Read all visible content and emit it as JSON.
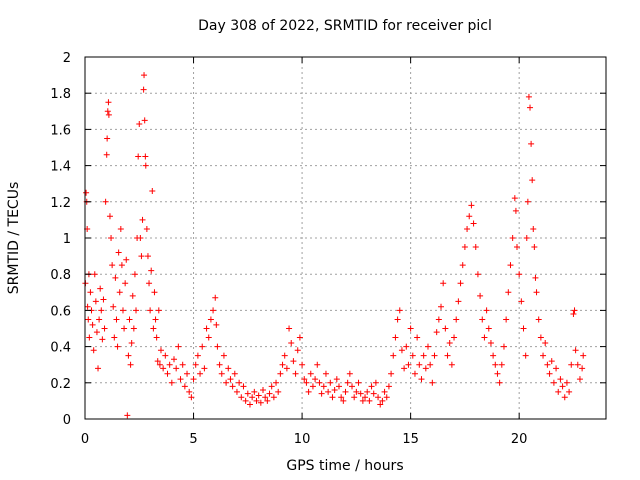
{
  "chart_data": {
    "type": "scatter",
    "title": "Day 308 of 2022, SRMTID for receiver picl",
    "xlabel": "GPS time / hours",
    "ylabel": "SRMTID / TECUs",
    "xlim": [
      0,
      24
    ],
    "ylim": [
      0,
      2
    ],
    "xticks": [
      0,
      5,
      10,
      15,
      20
    ],
    "xtick_labels": [
      "0",
      "5",
      "10",
      "15",
      "20"
    ],
    "yticks": [
      0,
      0.2,
      0.4,
      0.6,
      0.8,
      1,
      1.2,
      1.4,
      1.6,
      1.8,
      2
    ],
    "ytick_labels": [
      "0",
      "0.2",
      "0.4",
      "0.6",
      "0.8",
      "1",
      "1.2",
      "1.4",
      "1.6",
      "1.8",
      "2"
    ],
    "grid": true,
    "marker": "+",
    "color": "#ff0000",
    "series": [
      {
        "name": "SRMTID",
        "points": [
          [
            0.02,
            0.75
          ],
          [
            0.05,
            1.25
          ],
          [
            0.08,
            1.2
          ],
          [
            0.1,
            1.05
          ],
          [
            0.12,
            0.62
          ],
          [
            0.15,
            0.55
          ],
          [
            0.18,
            0.8
          ],
          [
            0.2,
            0.45
          ],
          [
            0.25,
            0.7
          ],
          [
            0.3,
            0.6
          ],
          [
            0.35,
            0.52
          ],
          [
            0.4,
            0.38
          ],
          [
            0.45,
            0.8
          ],
          [
            0.5,
            0.65
          ],
          [
            0.55,
            0.48
          ],
          [
            0.6,
            0.28
          ],
          [
            0.65,
            0.55
          ],
          [
            0.7,
            0.72
          ],
          [
            0.75,
            0.6
          ],
          [
            0.8,
            0.44
          ],
          [
            0.85,
            0.66
          ],
          [
            0.9,
            0.5
          ],
          [
            0.95,
            1.2
          ],
          [
            1.0,
            1.46
          ],
          [
            1.02,
            1.55
          ],
          [
            1.05,
            1.7
          ],
          [
            1.08,
            1.75
          ],
          [
            1.1,
            1.68
          ],
          [
            1.15,
            1.12
          ],
          [
            1.2,
            1.0
          ],
          [
            1.25,
            0.85
          ],
          [
            1.3,
            0.62
          ],
          [
            1.35,
            0.45
          ],
          [
            1.4,
            0.78
          ],
          [
            1.45,
            0.55
          ],
          [
            1.5,
            0.4
          ],
          [
            1.55,
            0.92
          ],
          [
            1.6,
            0.7
          ],
          [
            1.65,
            1.05
          ],
          [
            1.7,
            0.85
          ],
          [
            1.75,
            0.6
          ],
          [
            1.8,
            0.5
          ],
          [
            1.85,
            0.75
          ],
          [
            1.9,
            0.88
          ],
          [
            1.95,
            0.02
          ],
          [
            2.0,
            0.35
          ],
          [
            2.05,
            0.55
          ],
          [
            2.1,
            0.3
          ],
          [
            2.15,
            0.42
          ],
          [
            2.2,
            0.68
          ],
          [
            2.25,
            0.5
          ],
          [
            2.3,
            0.8
          ],
          [
            2.35,
            0.6
          ],
          [
            2.4,
            1.0
          ],
          [
            2.45,
            1.45
          ],
          [
            2.5,
            1.63
          ],
          [
            2.55,
            1.0
          ],
          [
            2.6,
            0.9
          ],
          [
            2.65,
            1.1
          ],
          [
            2.7,
            1.82
          ],
          [
            2.72,
            1.9
          ],
          [
            2.75,
            1.65
          ],
          [
            2.78,
            1.45
          ],
          [
            2.8,
            1.4
          ],
          [
            2.85,
            1.05
          ],
          [
            2.9,
            0.9
          ],
          [
            2.95,
            0.75
          ],
          [
            3.0,
            0.6
          ],
          [
            3.05,
            0.82
          ],
          [
            3.1,
            1.26
          ],
          [
            3.15,
            0.5
          ],
          [
            3.2,
            0.7
          ],
          [
            3.25,
            0.55
          ],
          [
            3.3,
            0.45
          ],
          [
            3.35,
            0.32
          ],
          [
            3.4,
            0.6
          ],
          [
            3.45,
            0.3
          ],
          [
            3.5,
            0.38
          ],
          [
            3.6,
            0.28
          ],
          [
            3.7,
            0.35
          ],
          [
            3.8,
            0.25
          ],
          [
            3.9,
            0.3
          ],
          [
            4.0,
            0.2
          ],
          [
            4.1,
            0.33
          ],
          [
            4.2,
            0.28
          ],
          [
            4.3,
            0.4
          ],
          [
            4.4,
            0.22
          ],
          [
            4.5,
            0.3
          ],
          [
            4.6,
            0.18
          ],
          [
            4.7,
            0.25
          ],
          [
            4.8,
            0.15
          ],
          [
            4.9,
            0.12
          ],
          [
            5.0,
            0.22
          ],
          [
            5.1,
            0.3
          ],
          [
            5.2,
            0.35
          ],
          [
            5.3,
            0.25
          ],
          [
            5.4,
            0.4
          ],
          [
            5.5,
            0.28
          ],
          [
            5.6,
            0.5
          ],
          [
            5.7,
            0.45
          ],
          [
            5.8,
            0.55
          ],
          [
            5.9,
            0.6
          ],
          [
            6.0,
            0.67
          ],
          [
            6.05,
            0.52
          ],
          [
            6.1,
            0.4
          ],
          [
            6.2,
            0.3
          ],
          [
            6.3,
            0.25
          ],
          [
            6.4,
            0.35
          ],
          [
            6.5,
            0.2
          ],
          [
            6.6,
            0.28
          ],
          [
            6.7,
            0.22
          ],
          [
            6.8,
            0.18
          ],
          [
            6.9,
            0.25
          ],
          [
            7.0,
            0.15
          ],
          [
            7.1,
            0.2
          ],
          [
            7.2,
            0.12
          ],
          [
            7.3,
            0.18
          ],
          [
            7.4,
            0.1
          ],
          [
            7.5,
            0.14
          ],
          [
            7.6,
            0.08
          ],
          [
            7.7,
            0.12
          ],
          [
            7.8,
            0.15
          ],
          [
            7.9,
            0.1
          ],
          [
            8.0,
            0.13
          ],
          [
            8.1,
            0.09
          ],
          [
            8.2,
            0.16
          ],
          [
            8.3,
            0.12
          ],
          [
            8.4,
            0.1
          ],
          [
            8.5,
            0.14
          ],
          [
            8.6,
            0.18
          ],
          [
            8.7,
            0.12
          ],
          [
            8.8,
            0.2
          ],
          [
            8.9,
            0.15
          ],
          [
            9.0,
            0.25
          ],
          [
            9.1,
            0.3
          ],
          [
            9.2,
            0.35
          ],
          [
            9.3,
            0.28
          ],
          [
            9.4,
            0.5
          ],
          [
            9.5,
            0.42
          ],
          [
            9.6,
            0.32
          ],
          [
            9.7,
            0.25
          ],
          [
            9.8,
            0.38
          ],
          [
            9.9,
            0.45
          ],
          [
            10.0,
            0.3
          ],
          [
            10.1,
            0.22
          ],
          [
            10.2,
            0.2
          ],
          [
            10.3,
            0.15
          ],
          [
            10.4,
            0.25
          ],
          [
            10.5,
            0.18
          ],
          [
            10.6,
            0.22
          ],
          [
            10.7,
            0.3
          ],
          [
            10.8,
            0.2
          ],
          [
            10.9,
            0.14
          ],
          [
            11.0,
            0.18
          ],
          [
            11.1,
            0.25
          ],
          [
            11.2,
            0.15
          ],
          [
            11.3,
            0.2
          ],
          [
            11.4,
            0.12
          ],
          [
            11.5,
            0.16
          ],
          [
            11.6,
            0.22
          ],
          [
            11.7,
            0.18
          ],
          [
            11.8,
            0.12
          ],
          [
            11.9,
            0.1
          ],
          [
            12.0,
            0.15
          ],
          [
            12.1,
            0.2
          ],
          [
            12.2,
            0.25
          ],
          [
            12.3,
            0.18
          ],
          [
            12.4,
            0.12
          ],
          [
            12.5,
            0.15
          ],
          [
            12.6,
            0.2
          ],
          [
            12.7,
            0.14
          ],
          [
            12.8,
            0.1
          ],
          [
            12.9,
            0.12
          ],
          [
            13.0,
            0.15
          ],
          [
            13.1,
            0.1
          ],
          [
            13.2,
            0.18
          ],
          [
            13.3,
            0.14
          ],
          [
            13.4,
            0.2
          ],
          [
            13.5,
            0.12
          ],
          [
            13.6,
            0.08
          ],
          [
            13.7,
            0.1
          ],
          [
            13.8,
            0.15
          ],
          [
            13.9,
            0.12
          ],
          [
            14.0,
            0.18
          ],
          [
            14.1,
            0.25
          ],
          [
            14.2,
            0.35
          ],
          [
            14.3,
            0.45
          ],
          [
            14.4,
            0.55
          ],
          [
            14.5,
            0.6
          ],
          [
            14.6,
            0.38
          ],
          [
            14.7,
            0.28
          ],
          [
            14.8,
            0.4
          ],
          [
            14.9,
            0.3
          ],
          [
            15.0,
            0.5
          ],
          [
            15.1,
            0.35
          ],
          [
            15.2,
            0.25
          ],
          [
            15.3,
            0.45
          ],
          [
            15.4,
            0.3
          ],
          [
            15.5,
            0.22
          ],
          [
            15.6,
            0.35
          ],
          [
            15.7,
            0.28
          ],
          [
            15.8,
            0.4
          ],
          [
            15.9,
            0.3
          ],
          [
            16.0,
            0.2
          ],
          [
            16.1,
            0.35
          ],
          [
            16.2,
            0.48
          ],
          [
            16.3,
            0.55
          ],
          [
            16.4,
            0.62
          ],
          [
            16.5,
            0.75
          ],
          [
            16.6,
            0.5
          ],
          [
            16.7,
            0.35
          ],
          [
            16.8,
            0.42
          ],
          [
            16.9,
            0.3
          ],
          [
            17.0,
            0.45
          ],
          [
            17.1,
            0.55
          ],
          [
            17.2,
            0.65
          ],
          [
            17.3,
            0.75
          ],
          [
            17.4,
            0.85
          ],
          [
            17.5,
            0.95
          ],
          [
            17.6,
            1.05
          ],
          [
            17.7,
            1.12
          ],
          [
            17.8,
            1.18
          ],
          [
            17.9,
            1.08
          ],
          [
            18.0,
            0.95
          ],
          [
            18.1,
            0.8
          ],
          [
            18.2,
            0.68
          ],
          [
            18.3,
            0.55
          ],
          [
            18.4,
            0.45
          ],
          [
            18.5,
            0.6
          ],
          [
            18.6,
            0.5
          ],
          [
            18.7,
            0.42
          ],
          [
            18.8,
            0.35
          ],
          [
            18.9,
            0.3
          ],
          [
            19.0,
            0.25
          ],
          [
            19.1,
            0.2
          ],
          [
            19.2,
            0.3
          ],
          [
            19.3,
            0.4
          ],
          [
            19.4,
            0.55
          ],
          [
            19.5,
            0.7
          ],
          [
            19.6,
            0.85
          ],
          [
            19.7,
            1.0
          ],
          [
            19.8,
            1.22
          ],
          [
            19.85,
            1.15
          ],
          [
            19.9,
            0.95
          ],
          [
            20.0,
            0.8
          ],
          [
            20.1,
            0.65
          ],
          [
            20.2,
            0.5
          ],
          [
            20.3,
            0.35
          ],
          [
            20.35,
            1.0
          ],
          [
            20.4,
            1.2
          ],
          [
            20.45,
            1.78
          ],
          [
            20.5,
            1.72
          ],
          [
            20.55,
            1.52
          ],
          [
            20.6,
            1.32
          ],
          [
            20.65,
            1.05
          ],
          [
            20.7,
            0.95
          ],
          [
            20.75,
            0.78
          ],
          [
            20.8,
            0.7
          ],
          [
            20.9,
            0.55
          ],
          [
            21.0,
            0.45
          ],
          [
            21.1,
            0.35
          ],
          [
            21.2,
            0.42
          ],
          [
            21.3,
            0.3
          ],
          [
            21.4,
            0.25
          ],
          [
            21.5,
            0.32
          ],
          [
            21.6,
            0.2
          ],
          [
            21.7,
            0.28
          ],
          [
            21.8,
            0.15
          ],
          [
            21.9,
            0.22
          ],
          [
            22.0,
            0.18
          ],
          [
            22.1,
            0.12
          ],
          [
            22.2,
            0.2
          ],
          [
            22.3,
            0.15
          ],
          [
            22.4,
            0.3
          ],
          [
            22.5,
            0.58
          ],
          [
            22.55,
            0.6
          ],
          [
            22.6,
            0.38
          ],
          [
            22.7,
            0.3
          ],
          [
            22.8,
            0.22
          ],
          [
            22.9,
            0.28
          ],
          [
            22.95,
            0.35
          ]
        ]
      }
    ]
  }
}
